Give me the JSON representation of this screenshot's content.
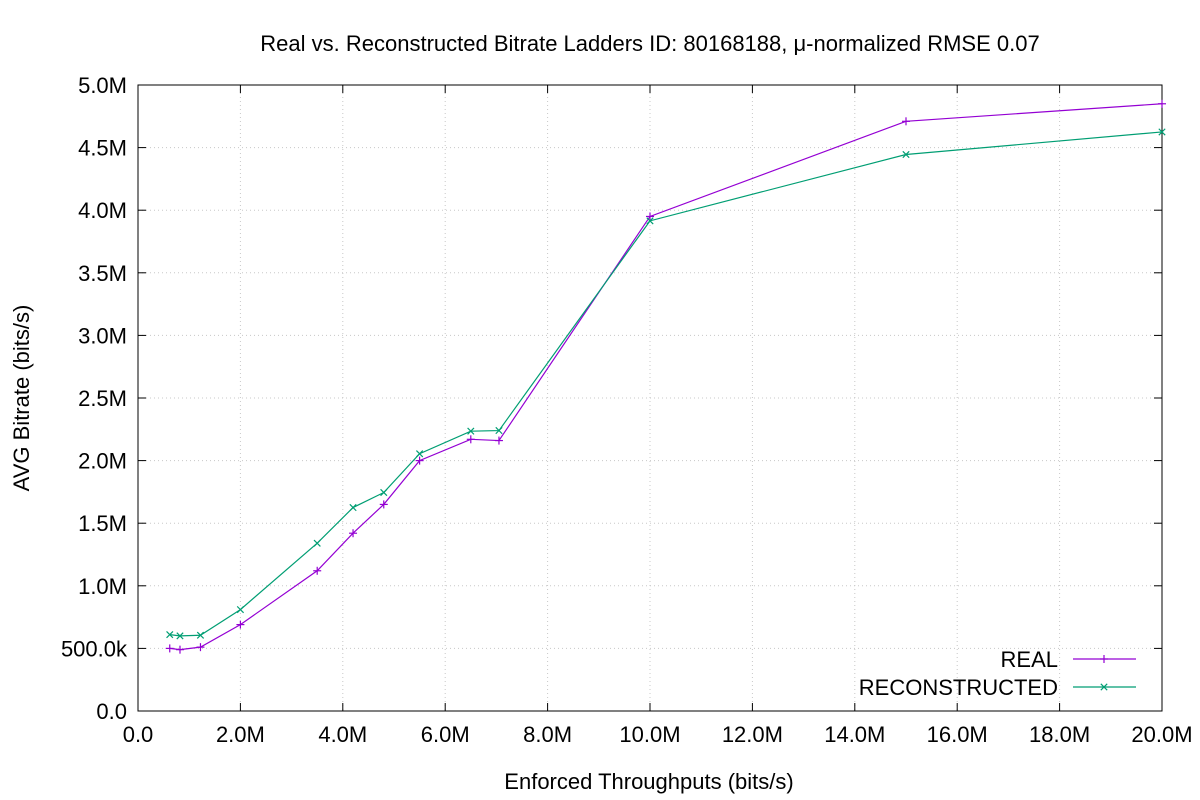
{
  "chart_data": {
    "type": "line",
    "title": "Real vs. Reconstructed Bitrate Ladders ID: 80168188, μ-normalized RMSE 0.07",
    "xlabel": "Enforced Throughputs (bits/s)",
    "ylabel": "AVG Bitrate (bits/s)",
    "xlim": [
      0,
      20000000
    ],
    "ylim": [
      0,
      5000000
    ],
    "x_ticks": [
      {
        "value": 0,
        "label": "0.0"
      },
      {
        "value": 2000000,
        "label": "2.0M"
      },
      {
        "value": 4000000,
        "label": "4.0M"
      },
      {
        "value": 6000000,
        "label": "6.0M"
      },
      {
        "value": 8000000,
        "label": "8.0M"
      },
      {
        "value": 10000000,
        "label": "10.0M"
      },
      {
        "value": 12000000,
        "label": "12.0M"
      },
      {
        "value": 14000000,
        "label": "14.0M"
      },
      {
        "value": 16000000,
        "label": "16.0M"
      },
      {
        "value": 18000000,
        "label": "18.0M"
      },
      {
        "value": 20000000,
        "label": "20.0M"
      }
    ],
    "y_ticks": [
      {
        "value": 0,
        "label": "0.0"
      },
      {
        "value": 500000,
        "label": "500.0k"
      },
      {
        "value": 1000000,
        "label": "1.0M"
      },
      {
        "value": 1500000,
        "label": "1.5M"
      },
      {
        "value": 2000000,
        "label": "2.0M"
      },
      {
        "value": 2500000,
        "label": "2.5M"
      },
      {
        "value": 3000000,
        "label": "3.0M"
      },
      {
        "value": 3500000,
        "label": "3.5M"
      },
      {
        "value": 4000000,
        "label": "4.0M"
      },
      {
        "value": 4500000,
        "label": "4.5M"
      },
      {
        "value": 5000000,
        "label": "5.0M"
      }
    ],
    "grid": true,
    "legend_position": "bottom-right",
    "series": [
      {
        "name": "REAL",
        "color": "#9400d3",
        "marker": "plus",
        "x": [
          620000,
          820000,
          1220000,
          2000000,
          3500000,
          4200000,
          4800000,
          5500000,
          6500000,
          7050000,
          10000000,
          15000000,
          20000000
        ],
        "y": [
          500000,
          490000,
          510000,
          690000,
          1120000,
          1420000,
          1650000,
          2000000,
          2170000,
          2160000,
          3950000,
          4710000,
          4850000
        ]
      },
      {
        "name": "RECONSTRUCTED",
        "color": "#009e73",
        "marker": "cross",
        "x": [
          620000,
          820000,
          1220000,
          2000000,
          3500000,
          4200000,
          4800000,
          5500000,
          6500000,
          7050000,
          10000000,
          15000000,
          20000000
        ],
        "y": [
          610000,
          600000,
          605000,
          810000,
          1340000,
          1625000,
          1745000,
          2055000,
          2235000,
          2240000,
          3915000,
          4445000,
          4625000
        ]
      }
    ]
  }
}
